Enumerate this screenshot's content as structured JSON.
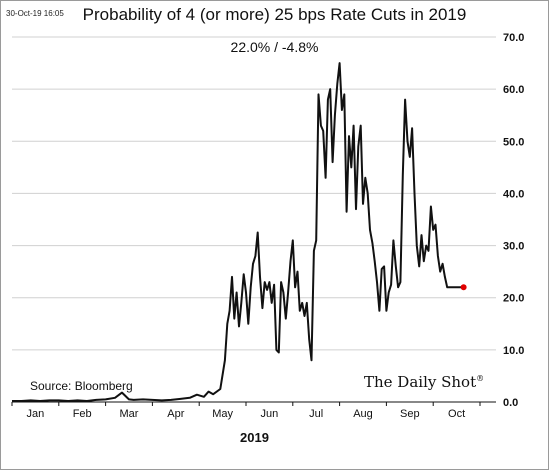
{
  "header": {
    "timestamp": "30-Oct-19 16:05",
    "title": "Probability of 4 (or more) 25 bps Rate Cuts in 2019",
    "readout": "22.0%  /  -4.8%"
  },
  "footer": {
    "source": "Source: Bloomberg",
    "brand": "The Daily Shot",
    "brand_mark": "®"
  },
  "colors": {
    "line": "#111111",
    "last_point": "#e00000",
    "grid": "#d0d0d0"
  },
  "chart_data": {
    "type": "line",
    "title": "Probability of 4 (or more) 25 bps Rate Cuts in 2019",
    "xlabel": "2019",
    "ylabel": "",
    "ylim": [
      0,
      70
    ],
    "yticks": [
      "0.0",
      "10.0",
      "20.0",
      "30.0",
      "40.0",
      "50.0",
      "60.0",
      "70.0"
    ],
    "x_categories": [
      "Jan",
      "Feb",
      "Mar",
      "Apr",
      "May",
      "Jun",
      "Jul",
      "Aug",
      "Sep",
      "Oct"
    ],
    "grid": "horizontal",
    "y_axis_position": "right",
    "series": [
      {
        "x": [
          0.0,
          0.2,
          0.4,
          0.6,
          0.8,
          1.0,
          1.2,
          1.4,
          1.6,
          1.8,
          2.0,
          2.2,
          2.35,
          2.5,
          2.6,
          2.8,
          3.0,
          3.2,
          3.4,
          3.6,
          3.8,
          3.95,
          4.1,
          4.2,
          4.3,
          4.45,
          4.55,
          4.6,
          4.65,
          4.7,
          4.75,
          4.8,
          4.85,
          4.9,
          4.95,
          5.0,
          5.05,
          5.1,
          5.15,
          5.2,
          5.25,
          5.3,
          5.35,
          5.4,
          5.45,
          5.5,
          5.55,
          5.6,
          5.65,
          5.7,
          5.75,
          5.8,
          5.85,
          5.9,
          5.95,
          6.0,
          6.05,
          6.1,
          6.15,
          6.2,
          6.25,
          6.3,
          6.35,
          6.4,
          6.45,
          6.5,
          6.55,
          6.6,
          6.65,
          6.7,
          6.75,
          6.8,
          6.85,
          6.9,
          6.95,
          7.0,
          7.05,
          7.1,
          7.15,
          7.2,
          7.25,
          7.3,
          7.35,
          7.4,
          7.45,
          7.5,
          7.55,
          7.6,
          7.65,
          7.7,
          7.75,
          7.8,
          7.85,
          7.9,
          7.95,
          8.0,
          8.05,
          8.1,
          8.15,
          8.2,
          8.25,
          8.3,
          8.35,
          8.4,
          8.45,
          8.5,
          8.55,
          8.6,
          8.65,
          8.7,
          8.75,
          8.8,
          8.85,
          8.9,
          8.95,
          9.0,
          9.05,
          9.1,
          9.15,
          9.2,
          9.25,
          9.3,
          9.35,
          9.4,
          9.45,
          9.5,
          9.55,
          9.6,
          9.65
        ],
        "y": [
          0.2,
          0.2,
          0.3,
          0.2,
          0.3,
          0.3,
          0.2,
          0.3,
          0.2,
          0.4,
          0.5,
          0.8,
          1.8,
          0.5,
          0.4,
          0.5,
          0.4,
          0.3,
          0.4,
          0.6,
          0.8,
          1.4,
          1.0,
          2.0,
          1.5,
          2.5,
          8.0,
          15.0,
          17.5,
          24.0,
          16.0,
          21.0,
          14.5,
          19.0,
          24.5,
          21.0,
          15.0,
          22.0,
          26.5,
          28.0,
          32.5,
          24.0,
          18.0,
          23.0,
          21.5,
          23.0,
          19.0,
          22.5,
          10.0,
          9.5,
          23.0,
          21.0,
          16.0,
          21.0,
          27.0,
          31.0,
          22.0,
          25.0,
          17.5,
          19.0,
          16.5,
          19.0,
          12.0,
          8.0,
          29.0,
          31.0,
          59.0,
          53.0,
          52.0,
          43.0,
          58.0,
          60.0,
          46.0,
          55.0,
          61.0,
          65.0,
          56.0,
          59.0,
          36.5,
          51.0,
          45.0,
          53.0,
          37.0,
          49.0,
          53.0,
          38.0,
          43.0,
          40.0,
          33.0,
          30.5,
          27.0,
          23.0,
          17.5,
          25.5,
          26.0,
          17.5,
          21.0,
          22.5,
          31.0,
          26.0,
          22.0,
          23.0,
          43.5,
          58.0,
          50.0,
          47.0,
          52.5,
          40.0,
          30.0,
          26.0,
          32.0,
          27.0,
          30.0,
          29.0,
          37.5,
          33.0,
          34.0,
          28.0,
          25.0,
          26.5,
          24.0,
          22.0,
          22.0,
          22.0,
          22.0,
          22.0,
          22.0,
          22.0,
          22.0
        ],
        "last_value": 22.0
      }
    ]
  }
}
